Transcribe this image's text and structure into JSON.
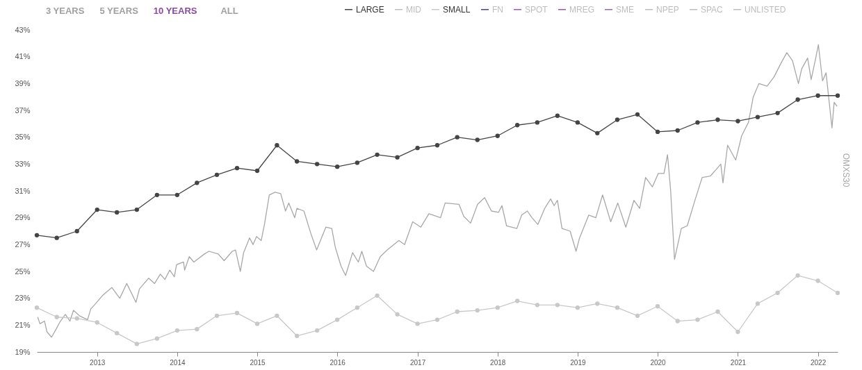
{
  "chart_data": {
    "type": "line",
    "annotations": [
      "3 YEARS",
      "5 YEARS",
      "10 YEARS",
      "ALL"
    ],
    "xlim": [
      "2012-04-01",
      "2022-04-01"
    ],
    "xticks": [
      "2013",
      "2014",
      "2015",
      "2016",
      "2017",
      "2018",
      "2019",
      "2020",
      "2021",
      "2022"
    ],
    "ylim": [
      19,
      43
    ],
    "yticks": [
      {
        "value": 19,
        "label": "19%"
      },
      {
        "value": 21,
        "label": "21%"
      },
      {
        "value": 23,
        "label": "23%"
      },
      {
        "value": 25,
        "label": "25%"
      },
      {
        "value": 27,
        "label": "27%"
      },
      {
        "value": 29,
        "label": "29%"
      },
      {
        "value": 31,
        "label": "31%"
      },
      {
        "value": 33,
        "label": "33%"
      },
      {
        "value": 35,
        "label": "35%"
      },
      {
        "value": 37,
        "label": "37%"
      },
      {
        "value": 39,
        "label": "39%"
      },
      {
        "value": 41,
        "label": "41%"
      },
      {
        "value": 43,
        "label": "43%"
      }
    ],
    "grid": false,
    "legend": "top right",
    "line_style": "solid",
    "series": [
      {
        "name": "LARGE",
        "color": "#444444",
        "marker": "circle",
        "x": [
          "2012-04-01",
          "2012-07-01",
          "2012-10-01",
          "2013-01-01",
          "2013-04-01",
          "2013-07-01",
          "2013-10-01",
          "2014-01-01",
          "2014-04-01",
          "2014-07-01",
          "2014-10-01",
          "2015-01-01",
          "2015-04-01",
          "2015-07-01",
          "2015-10-01",
          "2016-01-01",
          "2016-04-01",
          "2016-07-01",
          "2016-10-01",
          "2017-01-01",
          "2017-04-01",
          "2017-07-01",
          "2017-10-01",
          "2018-01-01",
          "2018-04-01",
          "2018-07-01",
          "2018-10-01",
          "2019-01-01",
          "2019-04-01",
          "2019-07-01",
          "2019-10-01",
          "2020-01-01",
          "2020-04-01",
          "2020-07-01",
          "2020-10-01",
          "2021-01-01",
          "2021-04-01",
          "2021-07-01",
          "2021-10-01",
          "2022-01-01",
          "2022-04-01"
        ],
        "values": [
          27.7,
          27.5,
          28.0,
          29.6,
          29.4,
          29.6,
          30.7,
          30.7,
          31.6,
          32.2,
          32.7,
          32.5,
          34.4,
          33.2,
          33.0,
          32.8,
          33.1,
          33.7,
          33.5,
          34.2,
          34.4,
          35.0,
          34.8,
          35.1,
          35.9,
          36.1,
          36.6,
          36.1,
          35.3,
          36.3,
          36.7,
          35.4,
          35.5,
          36.1,
          36.3,
          36.2,
          36.5,
          36.8,
          37.8,
          38.1,
          38.1
        ]
      },
      {
        "name": "MID",
        "color": "#bdbdbd"
      },
      {
        "name": "SMALL",
        "color": "#c8c8c8",
        "marker": "circle",
        "x": [
          "2012-04-01",
          "2012-07-01",
          "2012-10-01",
          "2013-01-01",
          "2013-04-01",
          "2013-07-01",
          "2013-10-01",
          "2014-01-01",
          "2014-04-01",
          "2014-07-01",
          "2014-10-01",
          "2015-01-01",
          "2015-04-01",
          "2015-07-01",
          "2015-10-01",
          "2016-01-01",
          "2016-04-01",
          "2016-07-01",
          "2016-10-01",
          "2017-01-01",
          "2017-04-01",
          "2017-07-01",
          "2017-10-01",
          "2018-01-01",
          "2018-04-01",
          "2018-07-01",
          "2018-10-01",
          "2019-01-01",
          "2019-04-01",
          "2019-07-01",
          "2019-10-01",
          "2020-01-01",
          "2020-04-01",
          "2020-07-01",
          "2020-10-01",
          "2021-01-01",
          "2021-04-01",
          "2021-07-01",
          "2021-10-01",
          "2022-01-01",
          "2022-04-01"
        ],
        "values": [
          22.3,
          21.6,
          21.5,
          21.2,
          20.4,
          19.6,
          20.0,
          20.6,
          20.7,
          21.7,
          21.9,
          21.1,
          21.7,
          20.2,
          20.6,
          21.4,
          22.3,
          23.2,
          21.8,
          21.1,
          21.4,
          22.0,
          22.1,
          22.3,
          22.8,
          22.5,
          22.5,
          22.3,
          22.6,
          22.3,
          21.7,
          22.4,
          21.3,
          21.4,
          22.0,
          20.5,
          22.6,
          23.4,
          24.7,
          24.3,
          23.4
        ]
      },
      {
        "name": "FN",
        "color": "#4b3f8f"
      },
      {
        "name": "SPOT",
        "color": "#9b59b6"
      },
      {
        "name": "MREG",
        "color": "#a450b0"
      },
      {
        "name": "SME",
        "color": "#8e6aa8"
      },
      {
        "name": "NPEP",
        "color": "#bbbbbb"
      },
      {
        "name": "SPAC",
        "color": "#bbbbbb"
      },
      {
        "name": "UNLISTED",
        "color": "#bbbbbb"
      },
      {
        "name": "OMXS30",
        "color": "#a8a8a8",
        "marker": "none",
        "x": [
          "2012-04-05",
          "2012-04-15",
          "2012-05-06",
          "2012-05-17",
          "2012-06-07",
          "2012-06-28",
          "2012-07-14",
          "2012-08-09",
          "2012-08-30",
          "2012-09-15",
          "2012-10-12",
          "2012-11-18",
          "2012-12-03",
          "2012-12-25",
          "2013-01-25",
          "2013-03-09",
          "2013-04-14",
          "2013-05-16",
          "2013-06-27",
          "2013-07-13",
          "2013-08-24",
          "2013-09-20",
          "2013-10-16",
          "2013-11-06",
          "2013-11-28",
          "2013-12-19",
          "2013-12-29",
          "2014-01-30",
          "2014-02-04",
          "2014-02-25",
          "2014-03-18",
          "2014-05-05",
          "2014-05-26",
          "2014-07-07",
          "2014-08-03",
          "2014-09-09",
          "2014-09-24",
          "2014-10-16",
          "2014-10-31",
          "2014-11-27",
          "2014-12-13",
          "2014-12-29",
          "2015-01-19",
          "2015-02-03",
          "2015-02-25",
          "2015-03-23",
          "2015-04-18",
          "2015-05-10",
          "2015-05-25",
          "2015-06-21",
          "2015-07-01",
          "2015-08-02",
          "2015-09-03",
          "2015-09-29",
          "2015-11-10",
          "2015-12-07",
          "2015-12-23",
          "2016-01-18",
          "2016-02-08",
          "2016-03-11",
          "2016-04-06",
          "2016-04-22",
          "2016-05-13",
          "2016-06-14",
          "2016-07-15",
          "2016-08-16",
          "2016-10-08",
          "2016-11-03",
          "2016-12-10",
          "2017-01-16",
          "2017-02-22",
          "2017-04-16",
          "2017-05-07",
          "2017-07-09",
          "2017-07-31",
          "2017-08-31",
          "2017-10-02",
          "2017-11-03",
          "2017-12-04",
          "2018-01-05",
          "2018-01-21",
          "2018-02-11",
          "2018-03-30",
          "2018-04-21",
          "2018-05-17",
          "2018-06-07",
          "2018-07-04",
          "2018-08-04",
          "2018-08-31",
          "2018-09-16",
          "2018-10-01",
          "2018-10-22",
          "2018-11-28",
          "2018-12-25",
          "2019-01-10",
          "2019-02-21",
          "2019-03-25",
          "2019-04-25",
          "2019-06-01",
          "2019-07-03",
          "2019-08-09",
          "2019-09-15",
          "2019-10-11",
          "2019-11-07",
          "2019-12-08",
          "2020-01-04",
          "2020-01-30",
          "2020-02-15",
          "2020-02-29",
          "2020-03-18",
          "2020-04-18",
          "2020-05-15",
          "2020-06-21",
          "2020-07-22",
          "2020-08-28",
          "2020-09-24",
          "2020-10-15",
          "2020-10-25",
          "2020-11-15",
          "2020-12-22",
          "2021-01-18",
          "2021-02-18",
          "2021-03-12",
          "2021-04-07",
          "2021-05-14",
          "2021-06-15",
          "2021-07-16",
          "2021-08-12",
          "2021-09-07",
          "2021-10-04",
          "2021-10-19",
          "2021-11-15",
          "2021-12-01",
          "2021-12-22",
          "2022-01-03",
          "2022-01-22",
          "2022-02-07",
          "2022-03-06",
          "2022-03-16",
          "2022-03-29"
        ],
        "values": [
          21.6,
          21.1,
          21.3,
          20.5,
          20.1,
          20.7,
          21.2,
          21.8,
          21.3,
          22.1,
          21.7,
          21.4,
          22.2,
          22.6,
          23.2,
          23.8,
          23.0,
          24.1,
          22.7,
          23.7,
          24.5,
          24.1,
          24.8,
          24.4,
          25.1,
          24.6,
          25.5,
          25.7,
          25.1,
          26.1,
          25.7,
          26.3,
          26.5,
          26.3,
          25.8,
          26.5,
          26.6,
          25.0,
          26.4,
          27.5,
          27.0,
          27.6,
          27.3,
          28.5,
          30.7,
          30.9,
          30.8,
          29.5,
          30.1,
          29.0,
          29.7,
          29.5,
          27.8,
          26.6,
          28.3,
          28.2,
          26.8,
          25.4,
          24.7,
          26.4,
          25.7,
          26.5,
          25.4,
          25.0,
          26.1,
          26.6,
          27.3,
          27.0,
          28.7,
          28.3,
          29.3,
          29.0,
          30.1,
          30.0,
          29.1,
          28.6,
          30.0,
          30.5,
          29.5,
          29.4,
          29.9,
          28.4,
          28.2,
          29.2,
          29.5,
          29.0,
          28.5,
          29.7,
          30.4,
          29.9,
          30.3,
          28.2,
          28.0,
          26.5,
          27.5,
          29.2,
          29.0,
          30.7,
          28.7,
          30.1,
          28.3,
          30.3,
          29.7,
          32.0,
          31.3,
          32.3,
          32.3,
          33.7,
          31.1,
          25.9,
          28.2,
          28.4,
          30.4,
          32.0,
          32.1,
          32.6,
          33.0,
          31.6,
          34.4,
          33.3,
          35.1,
          36.1,
          38.0,
          39.0,
          38.8,
          39.5,
          40.5,
          41.3,
          40.7,
          39.0,
          40.1,
          40.9,
          39.3,
          40.9,
          41.9,
          39.2,
          39.8,
          35.7,
          37.6,
          37.3
        ]
      }
    ]
  }
}
